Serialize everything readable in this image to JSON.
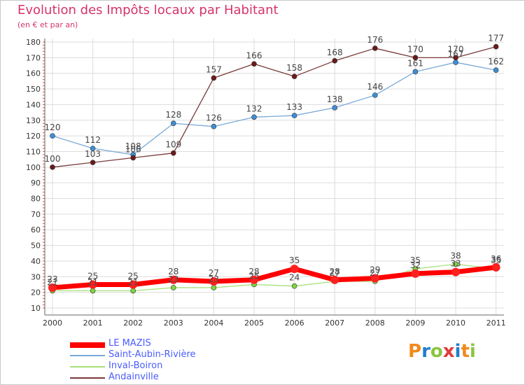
{
  "title": "Evolution des Impôts locaux par Habitant",
  "subtitle": "(en € et par an)",
  "logo": {
    "text": "Proxiti",
    "letters": [
      "P",
      "r",
      "o",
      "x",
      "i",
      "t",
      "i"
    ],
    "letter_colors": [
      "#f08a1c",
      "#1f7fd0",
      "#8ac53f",
      "#e23b3b",
      "#1f7fd0",
      "#f08a1c",
      "#8ac53f"
    ]
  },
  "chart_data": {
    "type": "line",
    "title": "Evolution des Impôts locaux par Habitant",
    "subtitle": "(en € et par an)",
    "xlabel": "",
    "ylabel": "",
    "ylim": [
      10,
      180
    ],
    "yticks": [
      10,
      20,
      30,
      40,
      50,
      60,
      70,
      80,
      90,
      100,
      110,
      120,
      130,
      140,
      150,
      160,
      170,
      180
    ],
    "x": [
      "2000",
      "2001",
      "2002",
      "2003",
      "2004",
      "2005",
      "2006",
      "2007",
      "2008",
      "2009",
      "2010",
      "2011"
    ],
    "grid": true,
    "legend_position": "bottom-left",
    "series": [
      {
        "name": "LE MAZIS",
        "color": "#ff0000",
        "marker": "#ff2020",
        "width": 7,
        "values": [
          23,
          25,
          25,
          28,
          27,
          28,
          35,
          28,
          29,
          32,
          33,
          36
        ],
        "labels": [
          "23",
          "25",
          "25",
          "28",
          "27",
          "28",
          "35",
          "28",
          "29",
          "32",
          "33",
          "36"
        ]
      },
      {
        "name": "Saint-Aubin-Rivière",
        "color": "#7aaad8",
        "marker": "#3d8fd6",
        "width": 1.3,
        "values": [
          120,
          112,
          108,
          128,
          126,
          132,
          133,
          138,
          146,
          161,
          167,
          162
        ],
        "labels": [
          "120",
          "112",
          "108",
          "128",
          "126",
          "132",
          "133",
          "138",
          "146",
          "161",
          "167",
          "162"
        ]
      },
      {
        "name": "Inval-Boiron",
        "color": "#a8e07a",
        "marker": "#7ed640",
        "width": 1.3,
        "values": [
          21,
          21,
          21,
          23,
          23,
          25,
          24,
          27,
          27,
          35,
          38,
          35
        ],
        "labels": [
          "21",
          "21",
          "21",
          "23",
          "23",
          "25",
          "24",
          "27",
          "27",
          "35",
          "38",
          "35"
        ]
      },
      {
        "name": "Andainville",
        "color": "#7a3a3a",
        "marker": "#6b1a1a",
        "width": 1.3,
        "values": [
          100,
          103,
          106,
          109,
          157,
          166,
          158,
          168,
          176,
          170,
          170,
          177
        ],
        "labels": [
          "100",
          "103",
          "106",
          "109",
          "157",
          "166",
          "158",
          "168",
          "176",
          "170",
          "170",
          "177"
        ]
      }
    ]
  }
}
